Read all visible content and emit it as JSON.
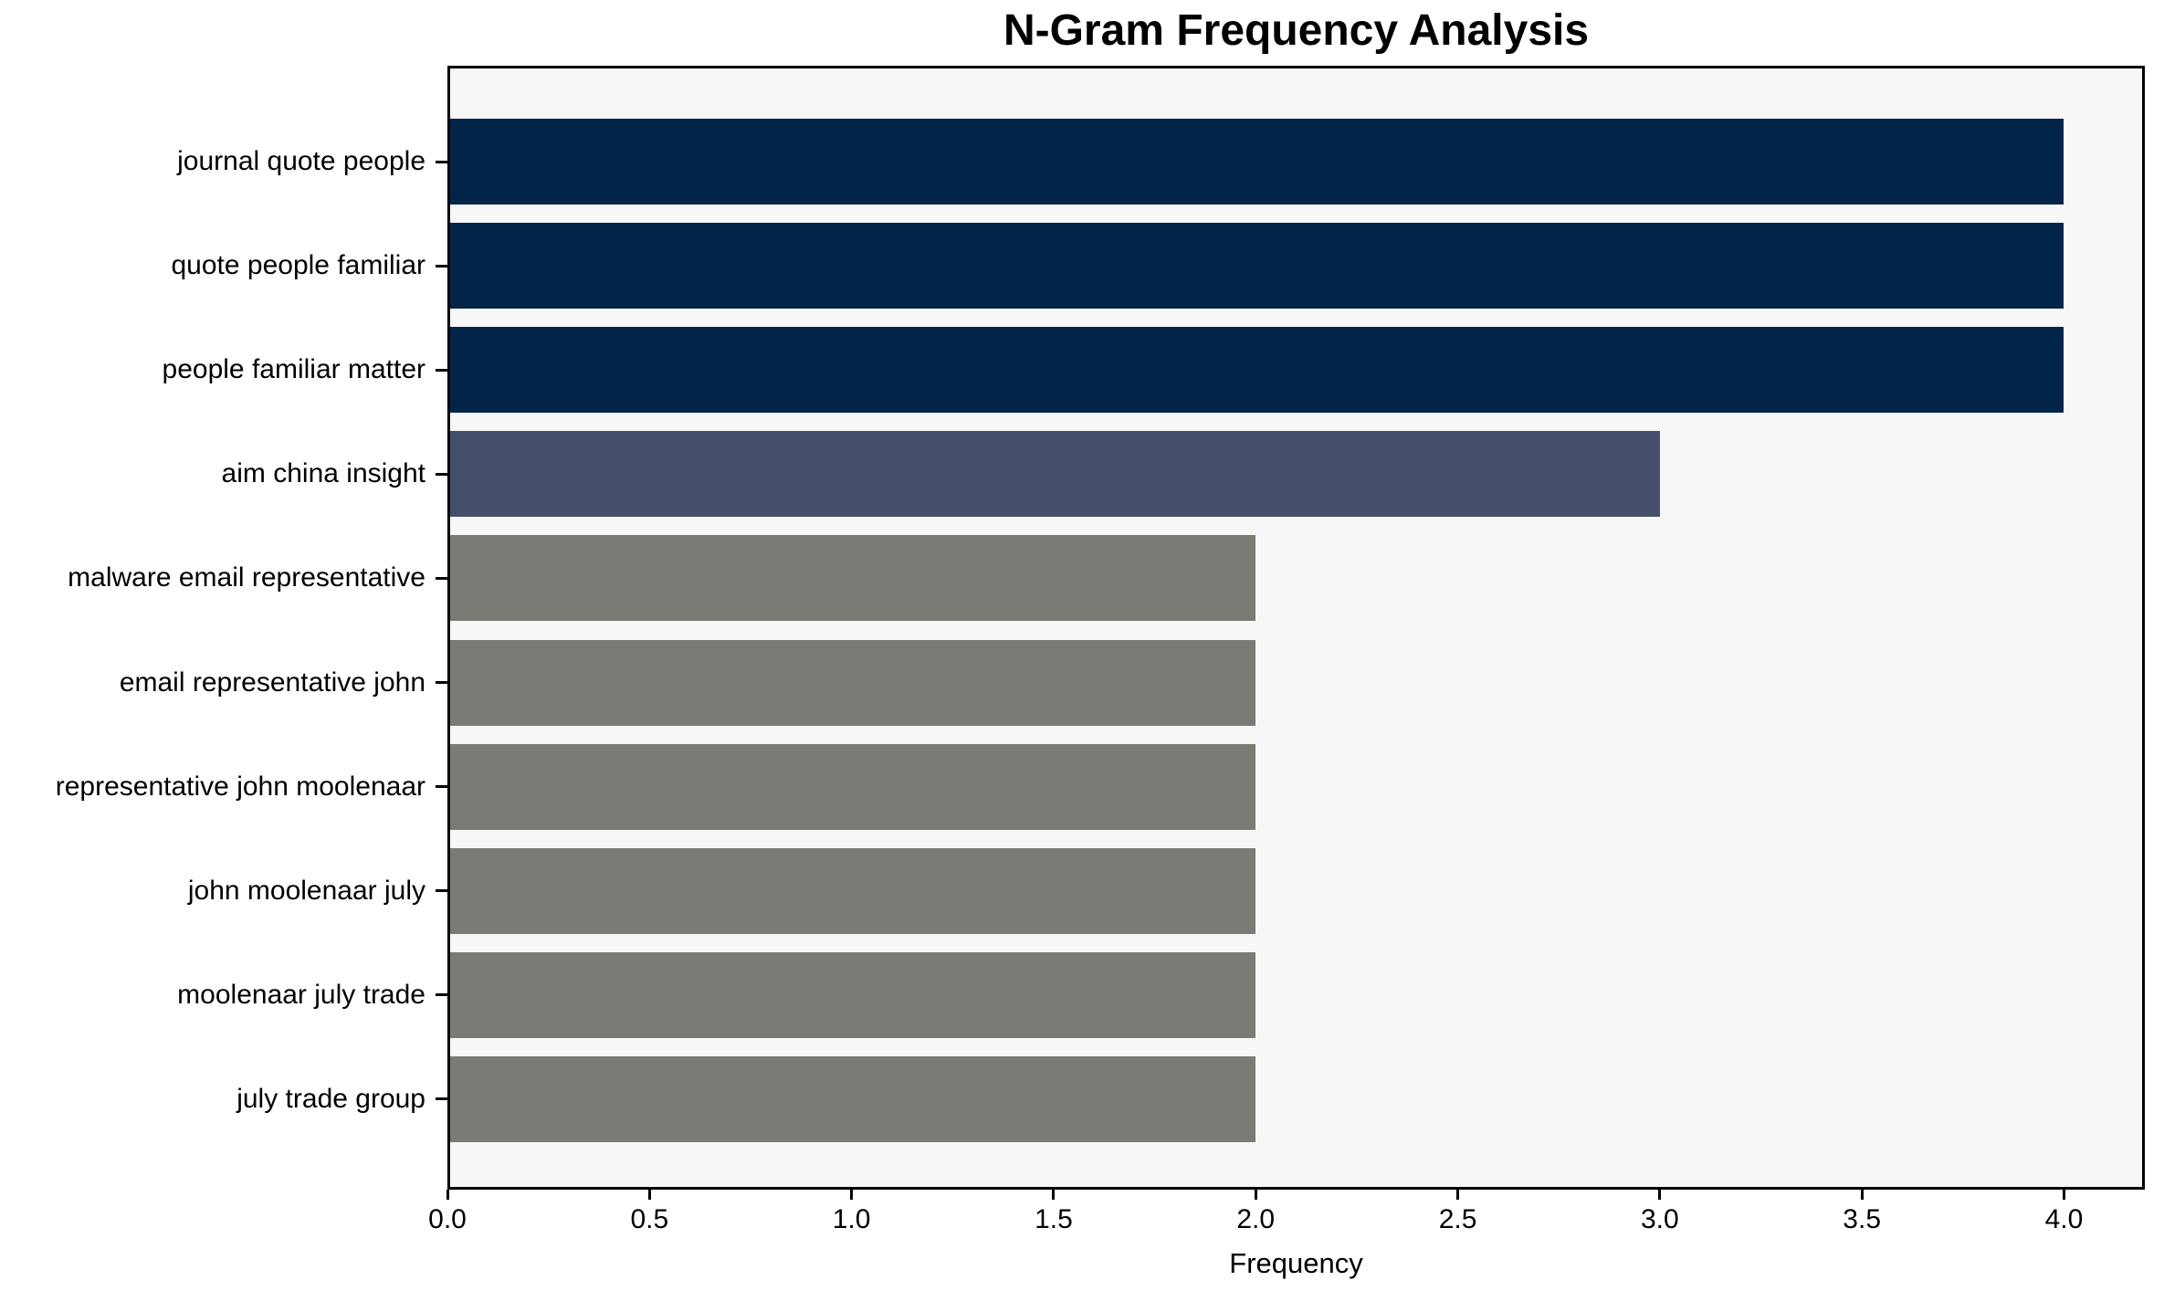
{
  "figure": {
    "background": "#ffffff",
    "plot_background": "#f7f7f7",
    "axis_color": "#000000",
    "text_color": "#000000"
  },
  "chart_data": {
    "type": "bar",
    "orientation": "horizontal",
    "title": "N-Gram Frequency Analysis",
    "xlabel": "Frequency",
    "ylabel": "",
    "categories": [
      "journal quote people",
      "quote people familiar",
      "people familiar matter",
      "aim china insight",
      "malware email representative",
      "email representative john",
      "representative john moolenaar",
      "john moolenaar july",
      "moolenaar july trade",
      "july trade group"
    ],
    "values": [
      4,
      4,
      4,
      3,
      2,
      2,
      2,
      2,
      2,
      2
    ],
    "bar_colors": [
      "#022449",
      "#022449",
      "#022449",
      "#454f6b",
      "#7b7a75",
      "#7b7a75",
      "#7b7a75",
      "#7b7a75",
      "#7b7a75",
      "#7b7a75"
    ],
    "xlim": [
      0,
      4.2
    ],
    "xticks": [
      0,
      0.5,
      1,
      1.5,
      2,
      2.5,
      3,
      3.5,
      4
    ],
    "xtick_labels": [
      "0.0",
      "0.5",
      "1.0",
      "1.5",
      "2.0",
      "2.5",
      "3.0",
      "3.5",
      "4.0"
    ],
    "grid": false,
    "legend": "none"
  }
}
